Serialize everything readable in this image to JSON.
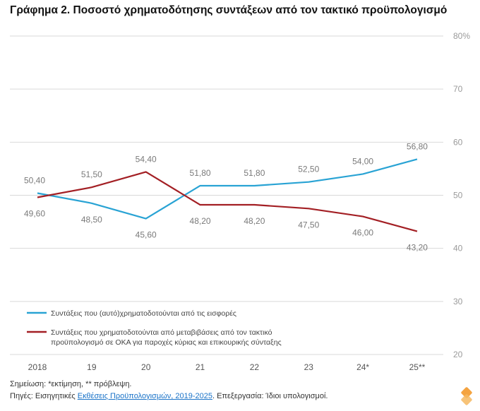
{
  "chart_data": {
    "type": "line",
    "title": "Γράφημα 2. Ποσοστό χρηματοδότησης συντάξεων από τον τακτικό προϋπολογισμό",
    "categories": [
      "2018",
      "19",
      "20",
      "21",
      "22",
      "23",
      "24*",
      "25**"
    ],
    "ylim": [
      20,
      80
    ],
    "yticks": [
      20,
      30,
      40,
      50,
      60,
      70,
      80
    ],
    "ytick_labels": [
      "20",
      "30",
      "40",
      "50",
      "60",
      "70",
      "80%"
    ],
    "grid": true,
    "legend_position": "bottom-left",
    "series": [
      {
        "name": "Συντάξεις που (αυτό)χρηματοδοτούνται από τις εισφορές",
        "color": "#29a3d4",
        "values": [
          50.4,
          48.5,
          45.6,
          51.8,
          51.8,
          52.5,
          54.0,
          56.8
        ],
        "labels": [
          "50,40",
          "48,50",
          "45,60",
          "51,80",
          "51,80",
          "52,50",
          "54,00",
          "56,80"
        ]
      },
      {
        "name": "Συντάξεις που χρηματοδοτούνται από μεταβιβάσεις από τον τακτικό προϋπολογισμό σε ΟΚΑ για παροχές κύριας και επικουρικής σύνταξης",
        "name_line1": "Συντάξεις που χρηματοδοτούνται από μεταβιβάσεις από τον τακτικό",
        "name_line2": "προϋπολογισμό σε ΟΚΑ για παροχές κύριας και επικουρικής σύνταξης",
        "color": "#a31f24",
        "values": [
          49.6,
          51.5,
          54.4,
          48.2,
          48.2,
          47.5,
          46.0,
          43.2
        ],
        "labels": [
          "49,60",
          "51,50",
          "54,40",
          "48,20",
          "48,20",
          "47,50",
          "46,00",
          "43,20"
        ]
      }
    ]
  },
  "footer": {
    "note": "Σημείωση: *εκτίμηση, ** πρόβλεψη.",
    "sources_prefix": "Πηγές: Εισηγητικές ",
    "sources_link": "Εκθέσεις Προϋπολογισμών, 2019-2025",
    "sources_suffix": ". Επεξεργασία: Ίδιοι υπολογισμοί."
  }
}
